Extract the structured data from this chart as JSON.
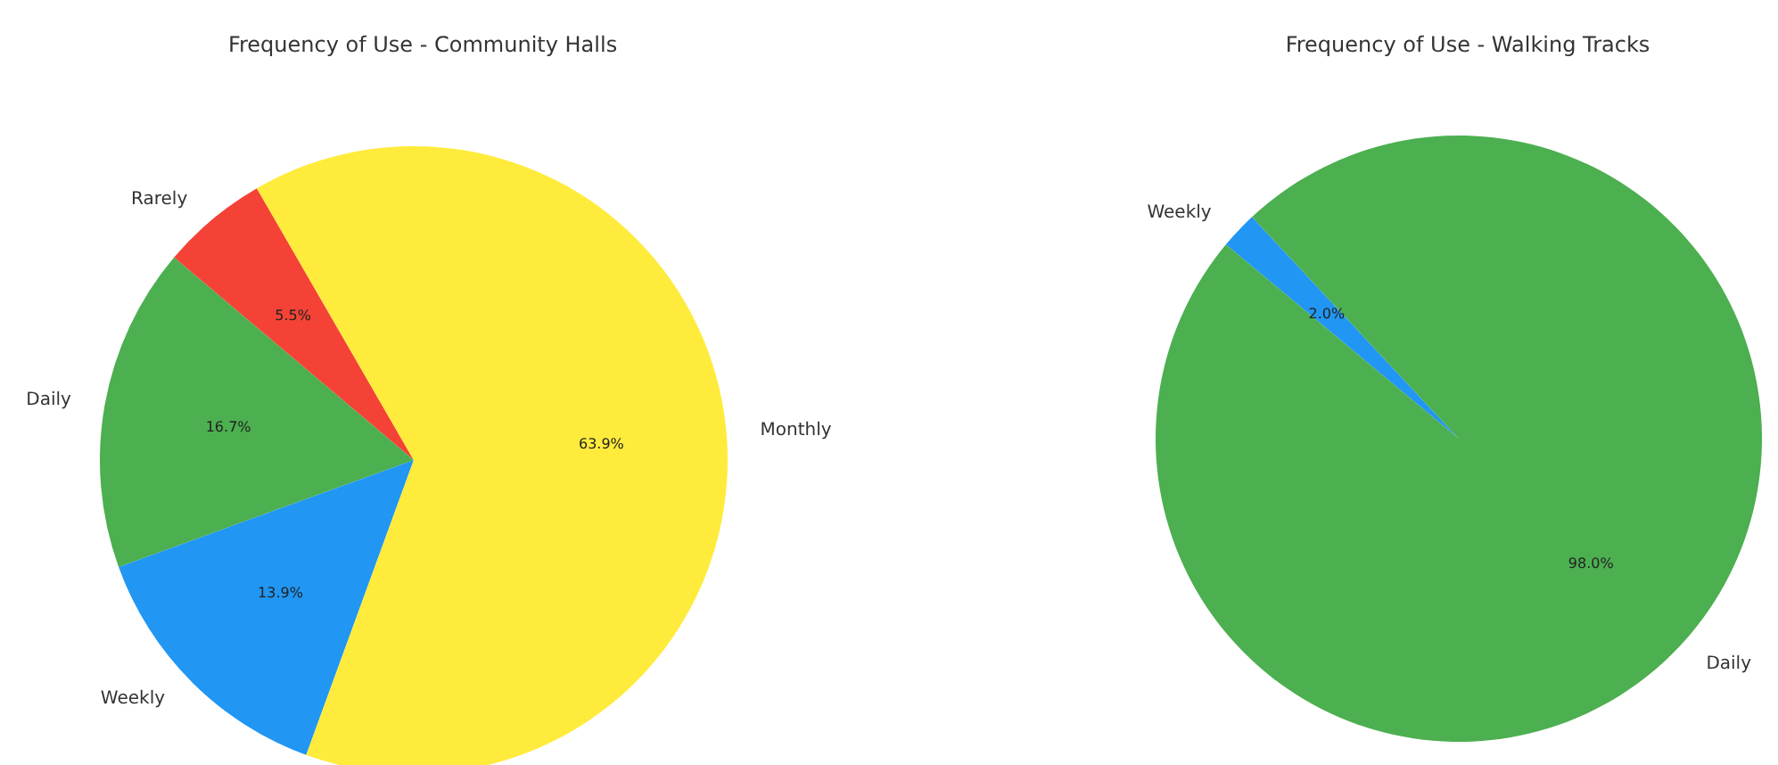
{
  "chart_data": [
    {
      "type": "pie",
      "title": "Frequency of Use - Community Halls",
      "categories": [
        "Rarely",
        "Daily",
        "Weekly",
        "Monthly"
      ],
      "values": [
        5.5,
        16.7,
        13.9,
        63.9
      ],
      "colors": [
        "#f44336",
        "#4caf50",
        "#2196f3",
        "#ffeb3b"
      ],
      "value_labels": [
        "5.5%",
        "16.7%",
        "13.9%",
        "63.9%"
      ]
    },
    {
      "type": "pie",
      "title": "Frequency of Use - Walking Tracks",
      "categories": [
        "Weekly",
        "Daily"
      ],
      "values": [
        2.0,
        98.0
      ],
      "colors": [
        "#2196f3",
        "#4caf50"
      ],
      "value_labels": [
        "2.0%",
        "98.0%"
      ]
    }
  ]
}
